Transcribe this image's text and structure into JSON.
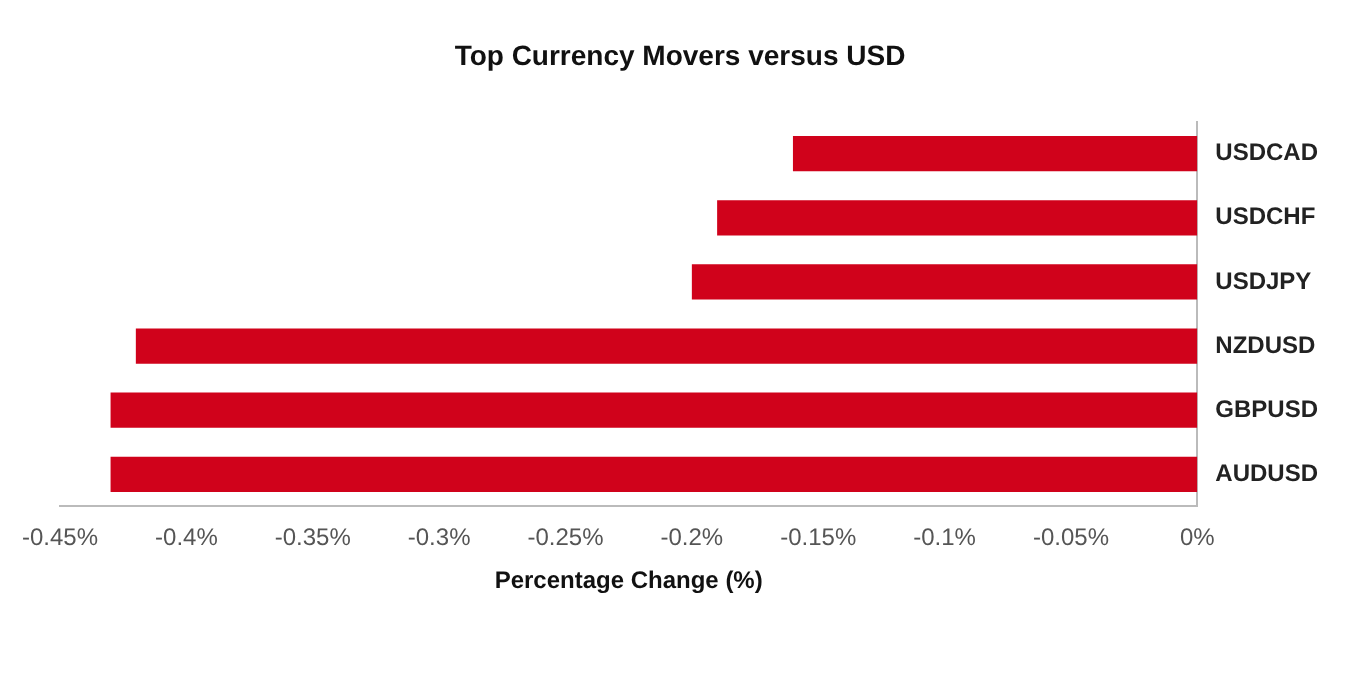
{
  "chart_data": {
    "type": "bar",
    "orientation": "horizontal",
    "title": "Top Currency Movers versus USD",
    "xlabel": "Percentage Change (%)",
    "categories": [
      "USDCAD",
      "USDCHF",
      "USDJPY",
      "NZDUSD",
      "GBPUSD",
      "AUDUSD"
    ],
    "values": [
      -0.16,
      -0.19,
      -0.2,
      -0.42,
      -0.43,
      -0.43
    ],
    "color": "#d0021b",
    "xlim": [
      -0.45,
      0
    ],
    "xticks": [
      {
        "value": -0.45,
        "label": "-0.45%"
      },
      {
        "value": -0.4,
        "label": "-0.4%"
      },
      {
        "value": -0.35,
        "label": "-0.35%"
      },
      {
        "value": -0.3,
        "label": "-0.3%"
      },
      {
        "value": -0.25,
        "label": "-0.25%"
      },
      {
        "value": -0.2,
        "label": "-0.2%"
      },
      {
        "value": -0.15,
        "label": "-0.15%"
      },
      {
        "value": -0.1,
        "label": "-0.1%"
      },
      {
        "value": -0.05,
        "label": "-0.05%"
      },
      {
        "value": 0,
        "label": "0%"
      }
    ],
    "grid": false,
    "legend": false
  }
}
